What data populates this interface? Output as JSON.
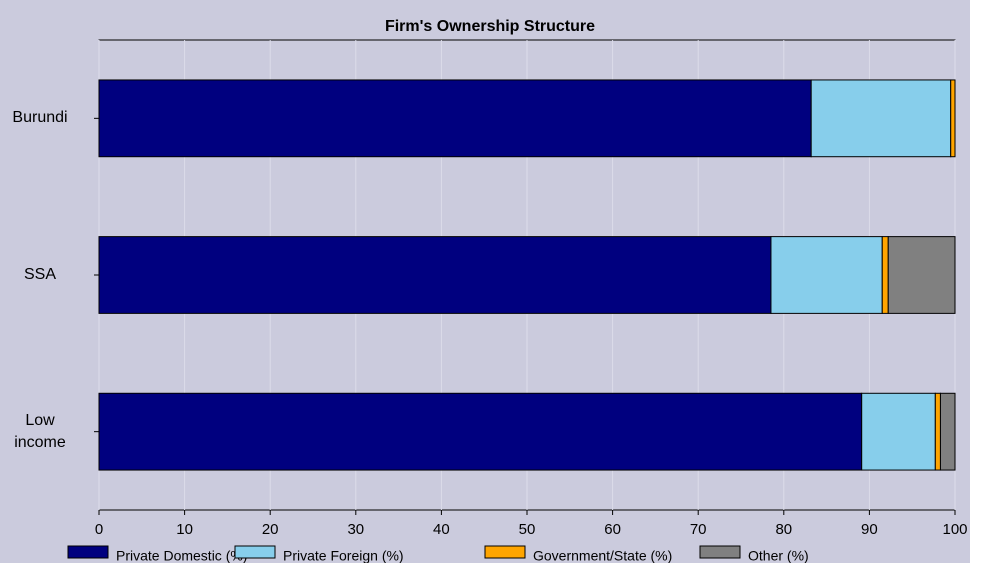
{
  "chart_data": {
    "type": "stacked_barh",
    "title": "Firm's Ownership Structure",
    "categories": [
      "Burundi",
      "SSA",
      "Low income"
    ],
    "series": [
      {
        "name": "Private Domestic (%)",
        "color": "#00007f",
        "values": [
          83.2,
          78.5,
          89.1
        ]
      },
      {
        "name": "Private Foreign (%)",
        "color": "#87ceeb",
        "values": [
          16.3,
          13.0,
          8.6
        ]
      },
      {
        "name": "Government/State (%)",
        "color": "#ffa500",
        "values": [
          0.5,
          0.7,
          0.6
        ]
      },
      {
        "name": "Other (%)",
        "color": "#808080",
        "values": [
          0,
          7.8,
          1.7
        ]
      }
    ],
    "xlim": [
      0,
      100
    ],
    "xticks": [
      0,
      10,
      20,
      30,
      40,
      50,
      60,
      70,
      80,
      90,
      100
    ],
    "grid": true
  }
}
